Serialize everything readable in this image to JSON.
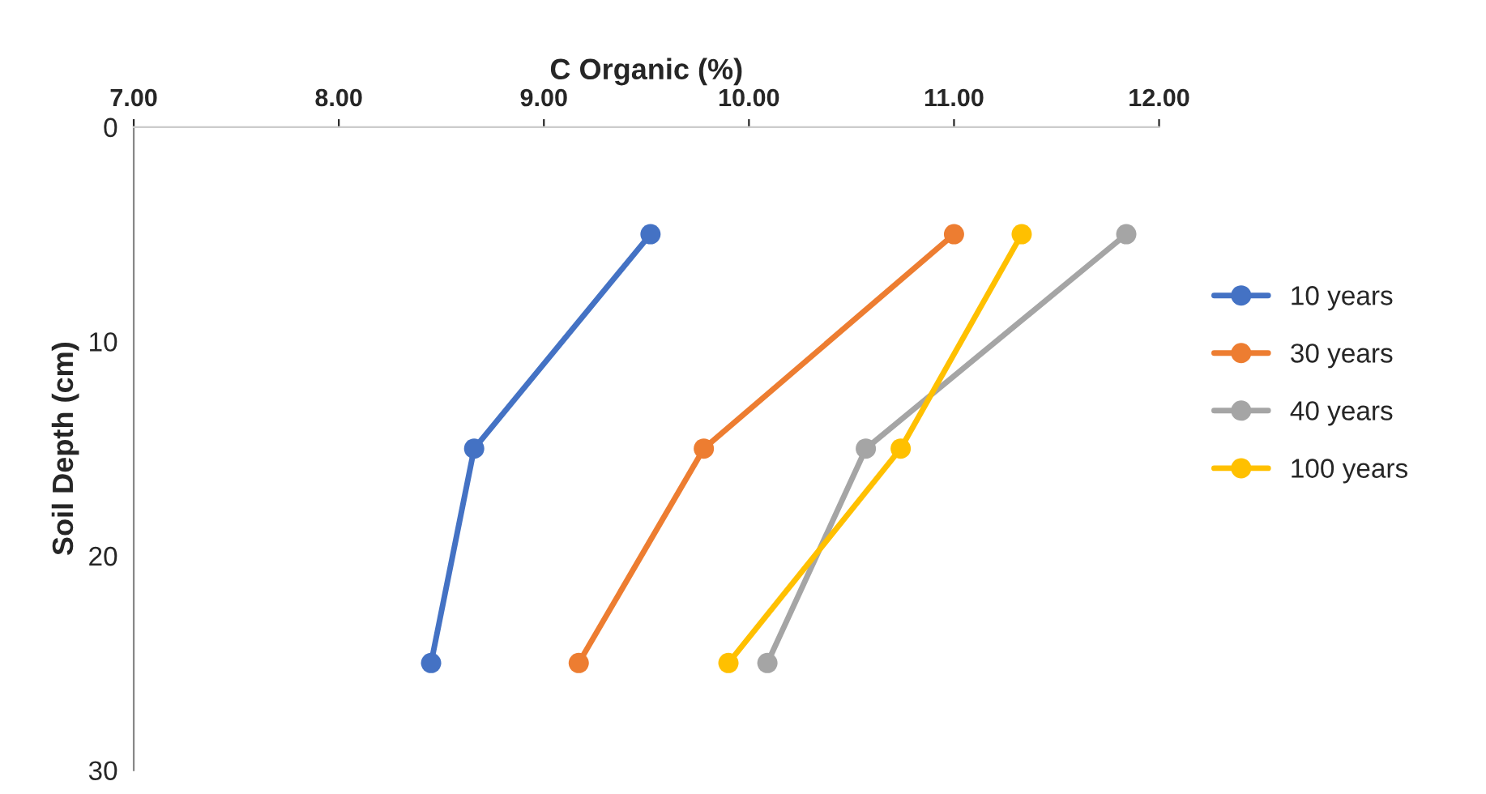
{
  "chart_data": {
    "type": "line",
    "xlabel": "C Organic (%)",
    "ylabel": "Soil Depth (cm)",
    "xlim": [
      7,
      12
    ],
    "xticks": [
      {
        "value": 7,
        "label": "7.00"
      },
      {
        "value": 8,
        "label": "8.00"
      },
      {
        "value": 9,
        "label": "9.00"
      },
      {
        "value": 10,
        "label": "10.00"
      },
      {
        "value": 11,
        "label": "11.00"
      },
      {
        "value": 12,
        "label": "12.00"
      }
    ],
    "ylim": [
      30,
      0
    ],
    "yticks": [
      0,
      10,
      20,
      30
    ],
    "grid": false,
    "legend": "right",
    "marker": "circle",
    "line_style": "solid",
    "series": [
      {
        "name": "10 years",
        "color": "#4472c4",
        "x": [
          9.52,
          8.66,
          8.45
        ],
        "values": [
          5,
          15,
          25
        ]
      },
      {
        "name": "30 years",
        "color": "#ed7d31",
        "x": [
          11.0,
          9.78,
          9.17
        ],
        "values": [
          5,
          15,
          25
        ]
      },
      {
        "name": "40 years",
        "color": "#a5a5a5",
        "x": [
          11.84,
          10.57,
          10.09
        ],
        "values": [
          5,
          15,
          25
        ]
      },
      {
        "name": "100 years",
        "color": "#ffc000",
        "x": [
          11.33,
          10.74,
          9.9
        ],
        "values": [
          5,
          15,
          25
        ]
      }
    ]
  }
}
